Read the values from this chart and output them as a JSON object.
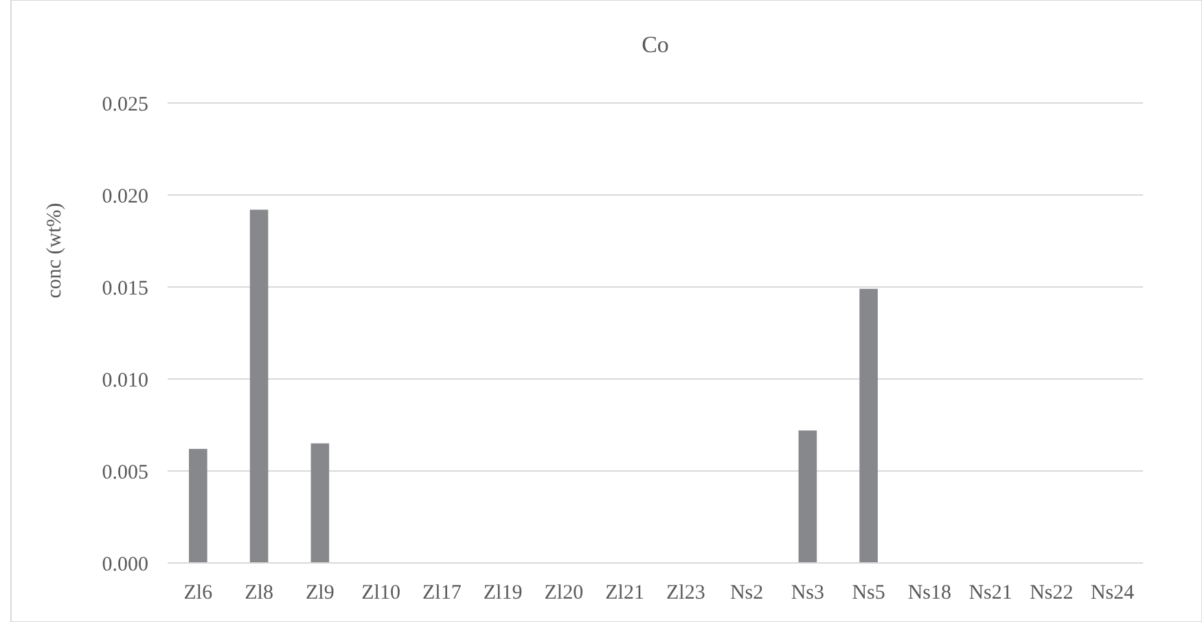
{
  "chart_data": {
    "type": "bar",
    "title": "Co",
    "ylabel": "conc (wt%)",
    "categories": [
      "Zl6",
      "Zl8",
      "Zl9",
      "Zl10",
      "Zl17",
      "Zl19",
      "Zl20",
      "Zl21",
      "Zl23",
      "Ns2",
      "Ns3",
      "Ns5",
      "Ns18",
      "Ns21",
      "Ns22",
      "Ns24"
    ],
    "values": [
      0.0062,
      0.0192,
      0.0065,
      0,
      0,
      0,
      0,
      0,
      0,
      0,
      0.0072,
      0.0149,
      0,
      0,
      0,
      0
    ],
    "color": "#87888c",
    "ylim": [
      0,
      0.025
    ],
    "yticks": [
      {
        "value": 0,
        "label": "0.000"
      },
      {
        "value": 0.005,
        "label": "0.005"
      },
      {
        "value": 0.01,
        "label": "0.010"
      },
      {
        "value": 0.015,
        "label": "0.015"
      },
      {
        "value": 0.02,
        "label": "0.020"
      },
      {
        "value": 0.025,
        "label": "0.025"
      }
    ],
    "grid": "y"
  }
}
